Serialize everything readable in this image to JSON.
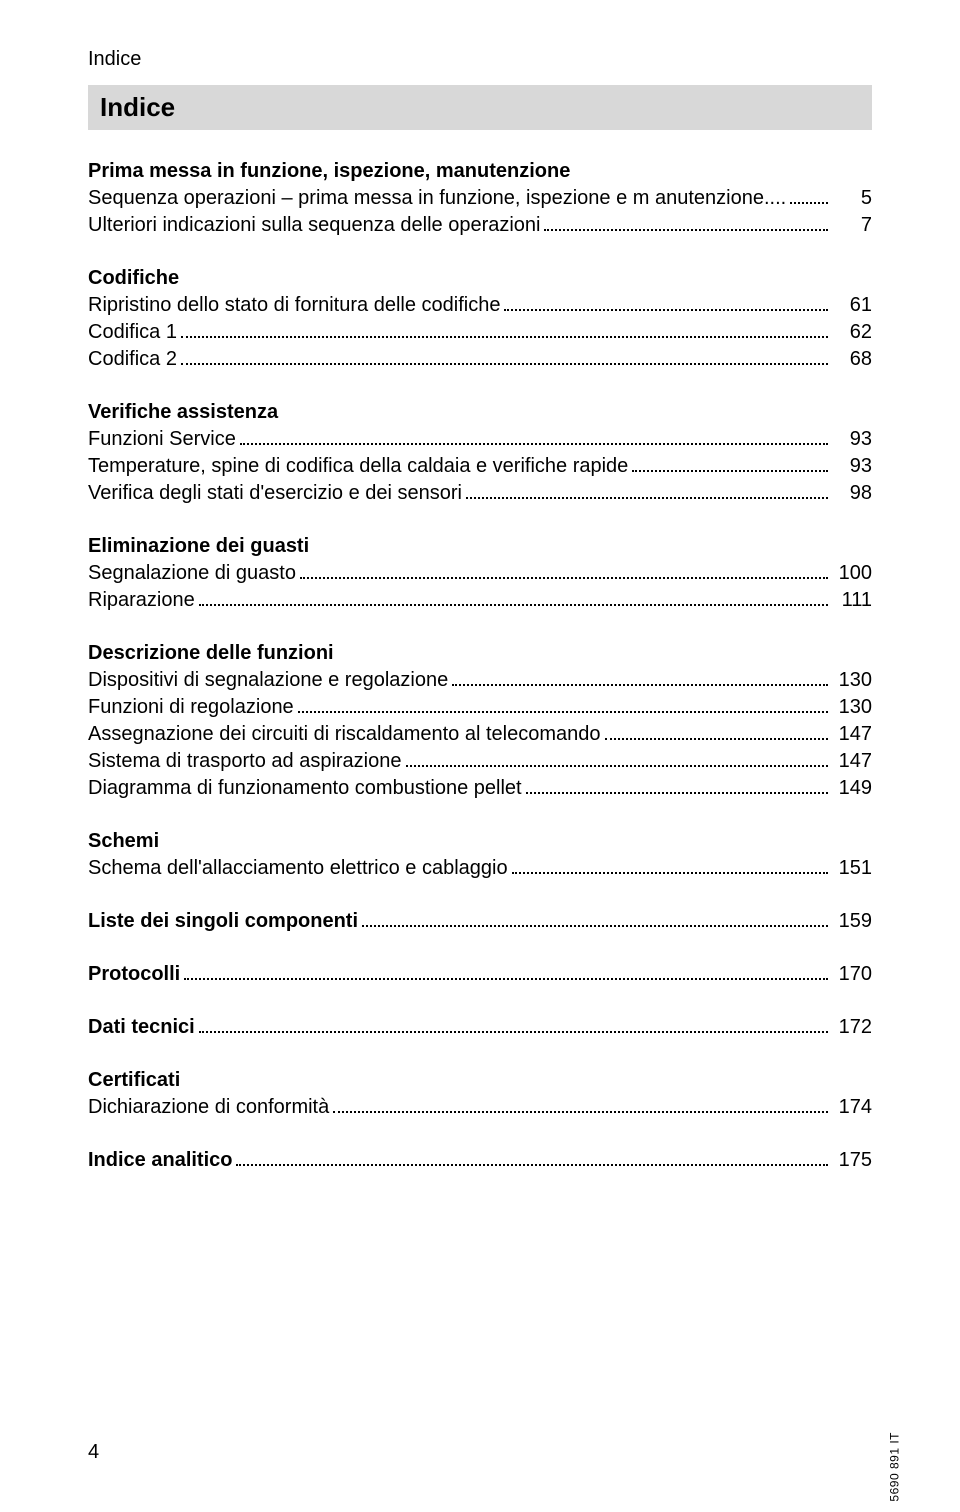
{
  "running_head": "Indice",
  "title": "Indice",
  "sections": [
    {
      "heading": "Prima messa in funzione, ispezione, manutenzione",
      "entries": [
        {
          "label": "Sequenza operazioni – prima messa in funzione, ispezione e m anutenzione....",
          "page": "5",
          "bold": false
        },
        {
          "label": "Ulteriori indicazioni sulla sequenza delle operazioni",
          "page": "7",
          "bold": false
        }
      ]
    },
    {
      "heading": "Codifiche",
      "entries": [
        {
          "label": "Ripristino dello stato di fornitura delle codifiche",
          "page": "61",
          "bold": false
        },
        {
          "label": "Codifica 1",
          "page": "62",
          "bold": false
        },
        {
          "label": "Codifica 2",
          "page": "68",
          "bold": false
        }
      ]
    },
    {
      "heading": "Verifiche assistenza",
      "entries": [
        {
          "label": "Funzioni Service",
          "page": "93",
          "bold": false
        },
        {
          "label": "Temperature, spine di codifica della caldaia e verifiche rapide",
          "page": "93",
          "bold": false
        },
        {
          "label": "Verifica degli stati d'esercizio e dei sensori",
          "page": "98",
          "bold": false
        }
      ]
    },
    {
      "heading": "Eliminazione dei guasti",
      "entries": [
        {
          "label": "Segnalazione di guasto",
          "page": "100",
          "bold": false
        },
        {
          "label": "Riparazione",
          "page": "111",
          "bold": false
        }
      ]
    },
    {
      "heading": "Descrizione delle funzioni",
      "entries": [
        {
          "label": "Dispositivi di segnalazione e regolazione",
          "page": "130",
          "bold": false
        },
        {
          "label": "Funzioni di regolazione",
          "page": "130",
          "bold": false
        },
        {
          "label": "Assegnazione dei circuiti di riscaldamento al telecomando",
          "page": "147",
          "bold": false
        },
        {
          "label": "Sistema di trasporto ad aspirazione",
          "page": "147",
          "bold": false
        },
        {
          "label": "Diagramma di funzionamento combustione pellet",
          "page": "149",
          "bold": false
        }
      ]
    },
    {
      "heading": "Schemi",
      "entries": [
        {
          "label": "Schema dell'allacciamento elettrico e cablaggio",
          "page": "151",
          "bold": false
        }
      ]
    },
    {
      "heading": null,
      "entries": [
        {
          "label": "Liste dei singoli componenti",
          "page": "159",
          "bold": true
        }
      ]
    },
    {
      "heading": null,
      "entries": [
        {
          "label": "Protocolli",
          "page": "170",
          "bold": true
        }
      ]
    },
    {
      "heading": null,
      "entries": [
        {
          "label": "Dati tecnici",
          "page": "172",
          "bold": true
        }
      ]
    },
    {
      "heading": "Certificati",
      "entries": [
        {
          "label": "Dichiarazione di conformità",
          "page": "174",
          "bold": false
        }
      ]
    },
    {
      "heading": null,
      "entries": [
        {
          "label": "Indice analitico",
          "page": "175",
          "bold": true
        }
      ]
    }
  ],
  "page_number": "4",
  "side_code": "5690 891 IT"
}
